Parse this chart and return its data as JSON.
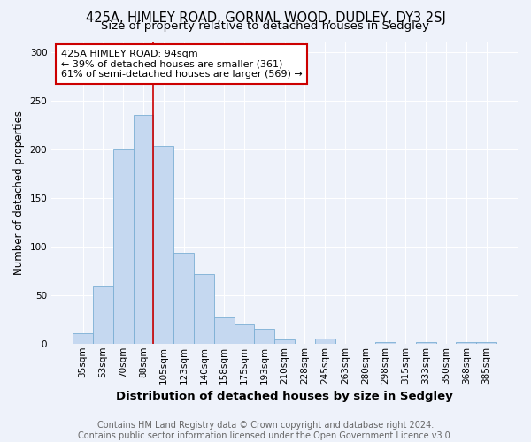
{
  "title": "425A, HIMLEY ROAD, GORNAL WOOD, DUDLEY, DY3 2SJ",
  "subtitle": "Size of property relative to detached houses in Sedgley",
  "xlabel": "Distribution of detached houses by size in Sedgley",
  "ylabel": "Number of detached properties",
  "categories": [
    "35sqm",
    "53sqm",
    "70sqm",
    "88sqm",
    "105sqm",
    "123sqm",
    "140sqm",
    "158sqm",
    "175sqm",
    "193sqm",
    "210sqm",
    "228sqm",
    "245sqm",
    "263sqm",
    "280sqm",
    "298sqm",
    "315sqm",
    "333sqm",
    "350sqm",
    "368sqm",
    "385sqm"
  ],
  "values": [
    11,
    59,
    200,
    235,
    203,
    93,
    72,
    27,
    20,
    15,
    4,
    0,
    5,
    0,
    0,
    2,
    0,
    2,
    0,
    2,
    2
  ],
  "bar_color": "#c5d8f0",
  "bar_edge_color": "#7bafd4",
  "vline_x": 3.5,
  "vline_color": "#cc0000",
  "annotation_text": "425A HIMLEY ROAD: 94sqm\n← 39% of detached houses are smaller (361)\n61% of semi-detached houses are larger (569) →",
  "annotation_box_color": "white",
  "annotation_box_edge": "#cc0000",
  "footer_text": "Contains HM Land Registry data © Crown copyright and database right 2024.\nContains public sector information licensed under the Open Government Licence v3.0.",
  "ylim": [
    0,
    310
  ],
  "background_color": "#eef2fa",
  "grid_color": "#ffffff",
  "title_fontsize": 10.5,
  "subtitle_fontsize": 9.5,
  "xlabel_fontsize": 9.5,
  "ylabel_fontsize": 8.5,
  "tick_fontsize": 7.5,
  "annotation_fontsize": 8,
  "footer_fontsize": 7
}
